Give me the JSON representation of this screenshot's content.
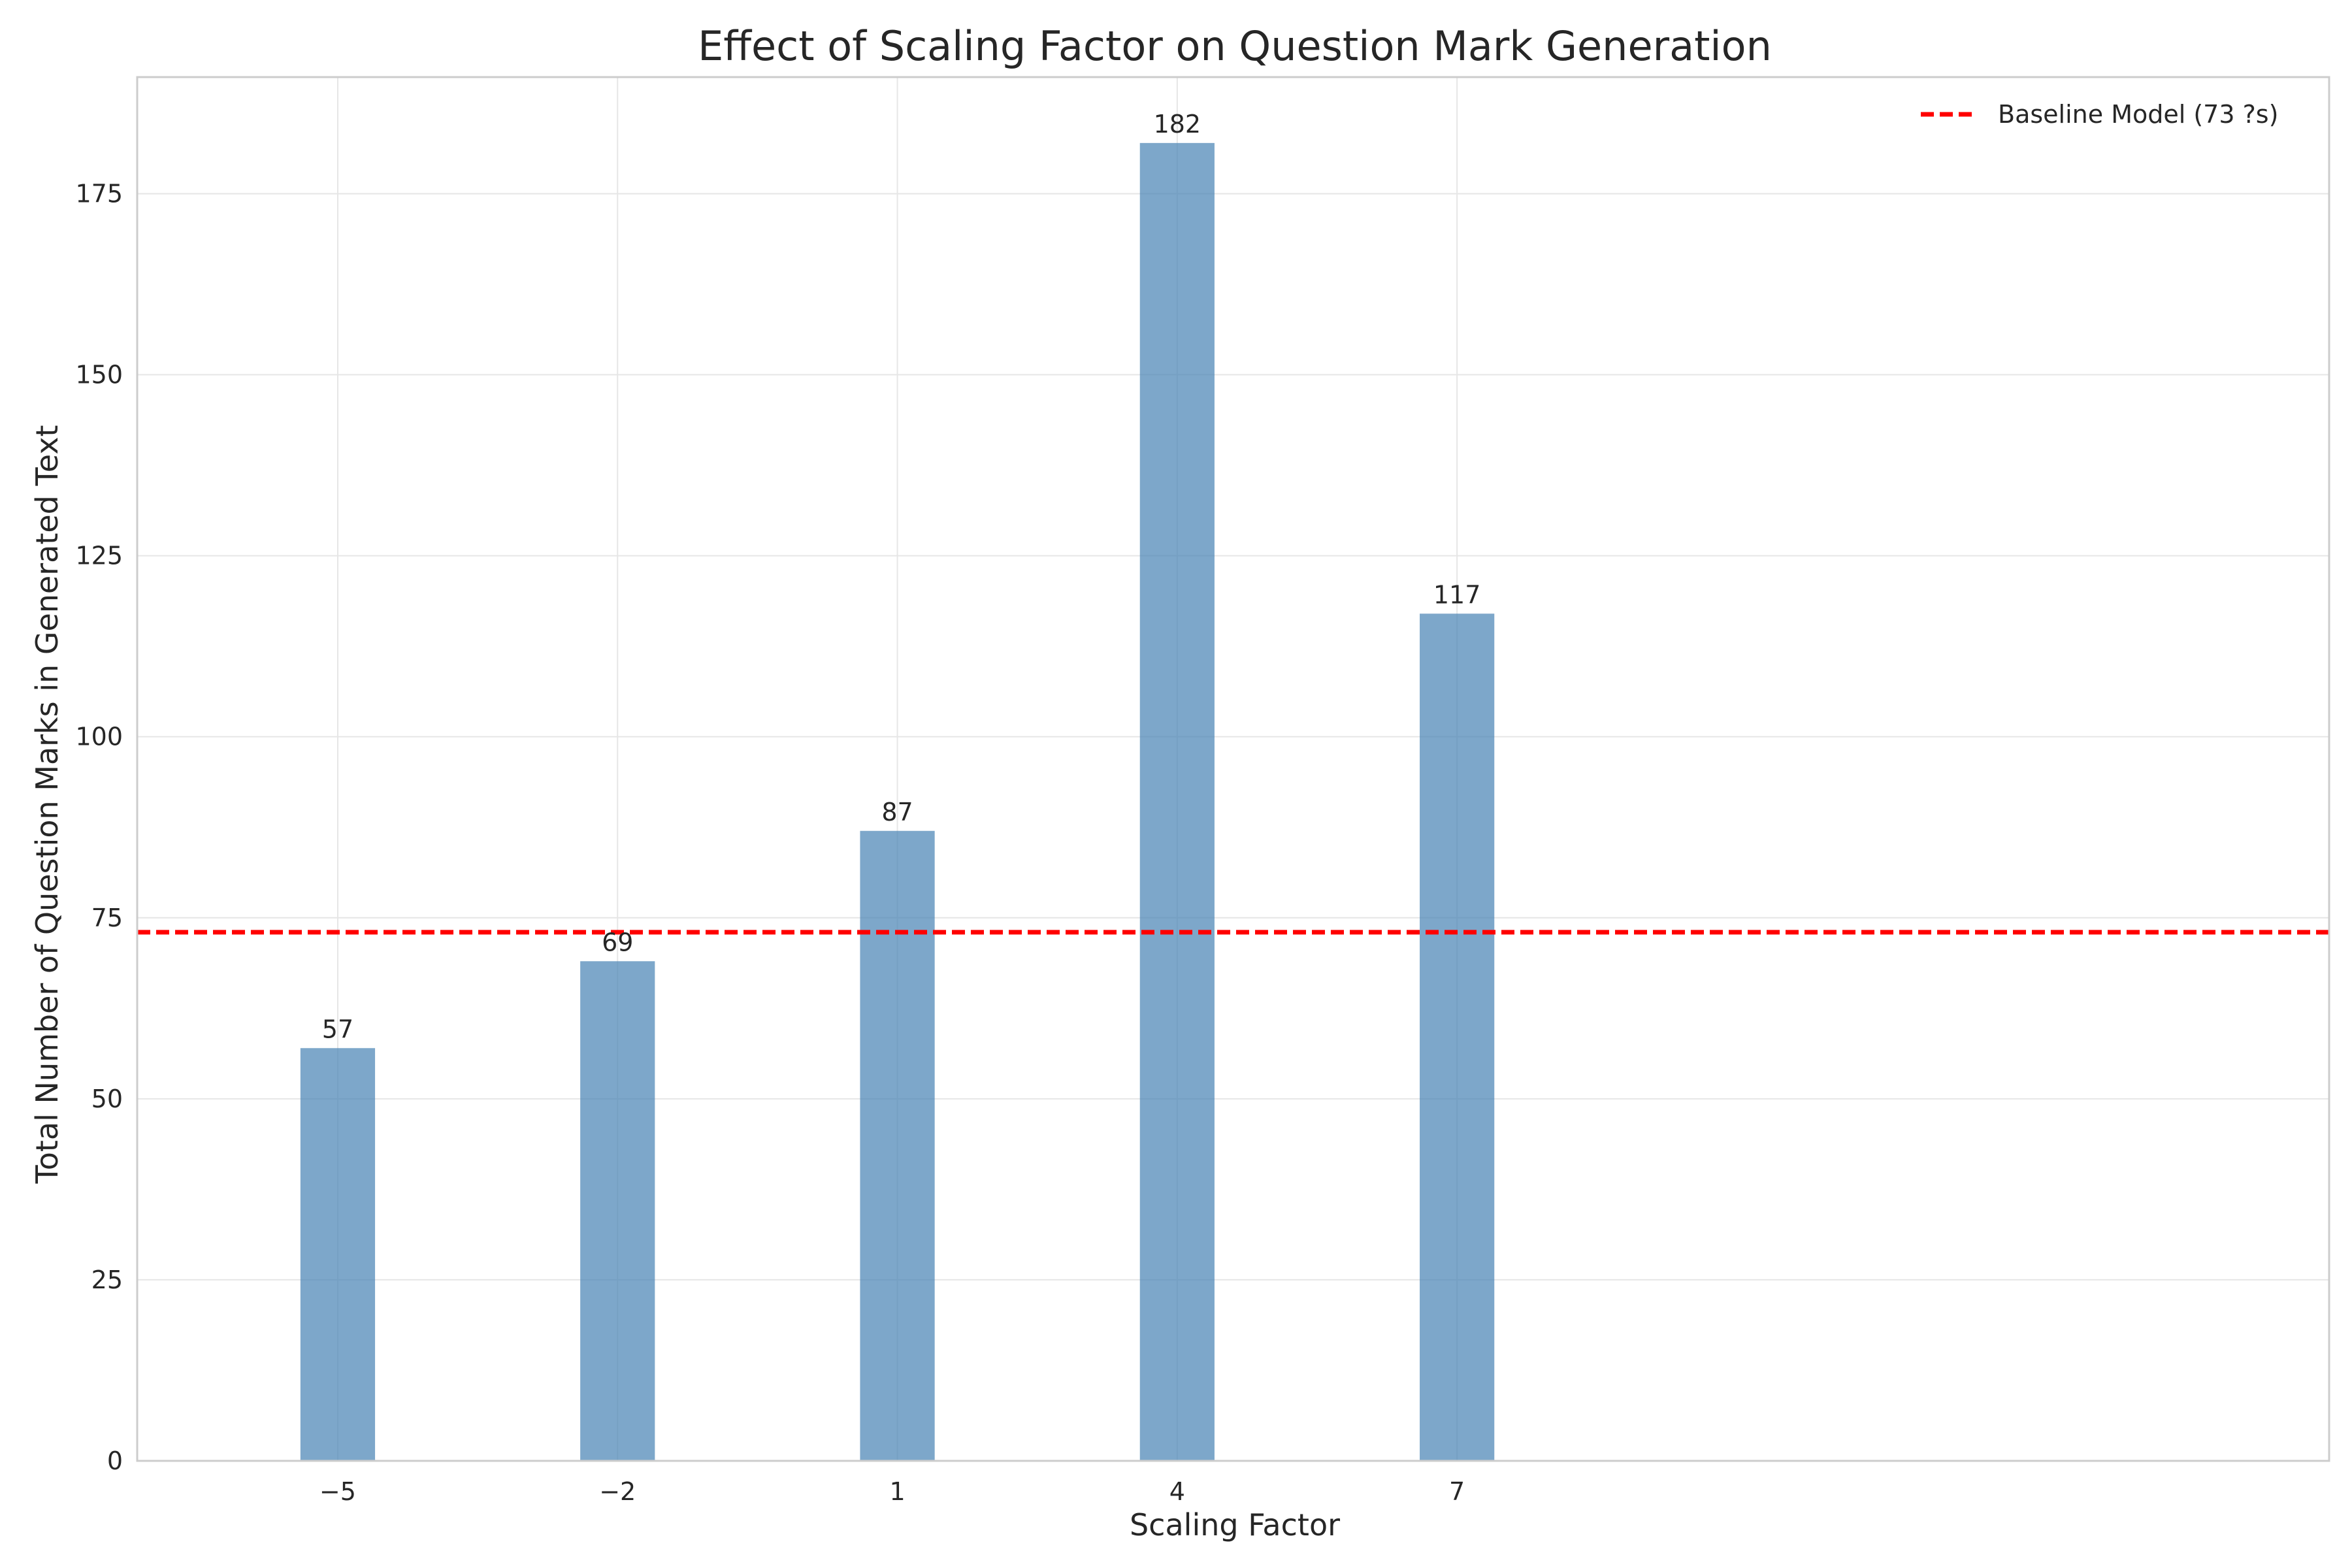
{
  "chart_data": {
    "type": "bar",
    "title": "Effect of Scaling Factor on Question Mark Generation",
    "xlabel": "Scaling Factor",
    "ylabel": "Total Number of Question Marks in Generated Text",
    "x": [
      -5,
      -2,
      1,
      4,
      7
    ],
    "x_tick_labels": [
      "−5",
      "−2",
      "1",
      "4",
      "7"
    ],
    "values": [
      57,
      69,
      87,
      182,
      117
    ],
    "data_labels": [
      "57",
      "69",
      "87",
      "182",
      "117"
    ],
    "bar_width": 0.8,
    "xlim": [
      -7.15,
      16.35
    ],
    "ylim": [
      0,
      191.1
    ],
    "y_ticks": [
      0,
      25,
      50,
      75,
      100,
      125,
      150,
      175
    ],
    "grid": true,
    "bar_color": "#4682b4",
    "baseline": {
      "value": 73,
      "label": "Baseline Model (73 ?s)",
      "color": "#ff0000",
      "style": "dashed"
    },
    "legend_position": "top-right"
  }
}
